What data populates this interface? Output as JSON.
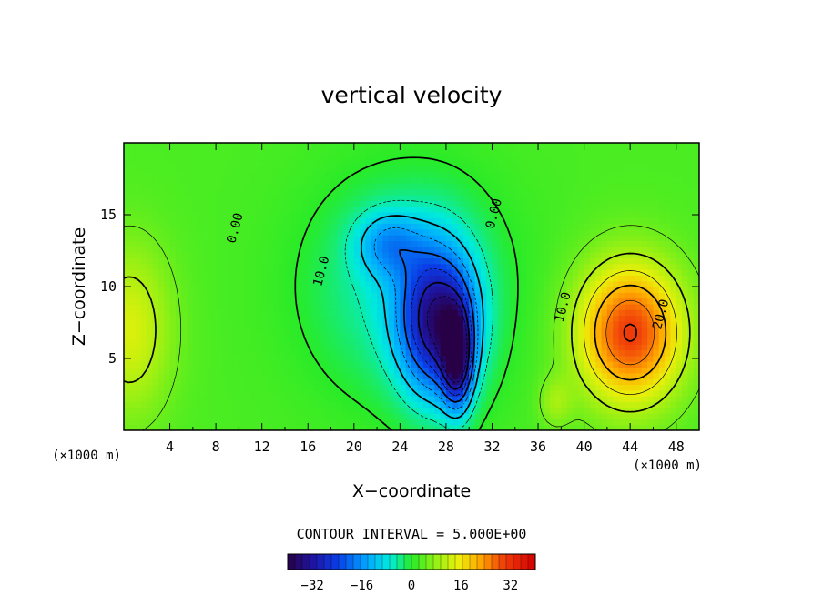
{
  "chart_data": {
    "type": "heatmap",
    "title": "vertical velocity",
    "xlabel": "X−coordinate",
    "ylabel": "Z−coordinate",
    "x_unit_left": "(×1000 m)",
    "x_unit_right": "(×1000 m)",
    "xlim": [
      0,
      50
    ],
    "ylim": [
      0,
      20
    ],
    "x_ticks": [
      4,
      8,
      12,
      16,
      20,
      24,
      28,
      32,
      36,
      40,
      44,
      48
    ],
    "x_tick_labels": [
      "4",
      "8",
      "12",
      "16",
      "20",
      "24",
      "28",
      "32",
      "36",
      "40",
      "44",
      "48"
    ],
    "y_ticks": [
      5,
      10,
      15
    ],
    "y_tick_labels": [
      "5",
      "10",
      "15"
    ],
    "contour_interval_text": "CONTOUR INTERVAL = 5.000E+00",
    "contour_interval": 5,
    "contour_labels": [
      {
        "text": "0.00",
        "x": 10.0,
        "z": 14.0
      },
      {
        "text": "0.00",
        "x": 32.5,
        "z": 15.0
      },
      {
        "text": "10.0",
        "x": 17.5,
        "z": 11.0
      },
      {
        "text": "10.0",
        "x": 38.5,
        "z": 8.5
      },
      {
        "text": "20.0",
        "x": 47.0,
        "z": 8.0
      }
    ],
    "field_features": [
      {
        "kind": "updraft",
        "x": 44.0,
        "z": 6.8,
        "value": 28
      },
      {
        "kind": "updraft",
        "x": 0.5,
        "z": 7.0,
        "value": 11
      },
      {
        "kind": "updraft",
        "x": 37.5,
        "z": 2.0,
        "value": 6
      },
      {
        "kind": "downdraft",
        "x": 27.3,
        "z": 7.5,
        "value": -32
      },
      {
        "kind": "downdraft",
        "x": 29.0,
        "z": 5.0,
        "value": -28
      },
      {
        "kind": "downdraft",
        "x": 23.0,
        "z": 13.0,
        "value": -12
      }
    ],
    "colorbar": {
      "min": -40,
      "max": 40,
      "ticks": [
        -32,
        -16,
        0,
        16,
        32
      ],
      "tick_labels": [
        "−32",
        "−16",
        "0",
        "16",
        "32"
      ]
    }
  }
}
